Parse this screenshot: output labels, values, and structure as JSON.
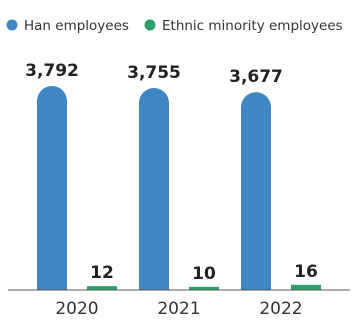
{
  "chart_data": {
    "type": "bar",
    "categories": [
      "2020",
      "2021",
      "2022"
    ],
    "series": [
      {
        "name": "Han employees",
        "values": [
          3792,
          3755,
          3677
        ],
        "color": "#3f87c2"
      },
      {
        "name": "Ethnic minority employees",
        "values": [
          12,
          10,
          16
        ],
        "color": "#2e9e6b"
      }
    ],
    "value_labels": [
      [
        "3,792",
        "3,755",
        "3,677"
      ],
      [
        "12",
        "10",
        "16"
      ]
    ],
    "ylim": [
      0,
      4200
    ],
    "grid": false,
    "legend_position": "top-left"
  }
}
